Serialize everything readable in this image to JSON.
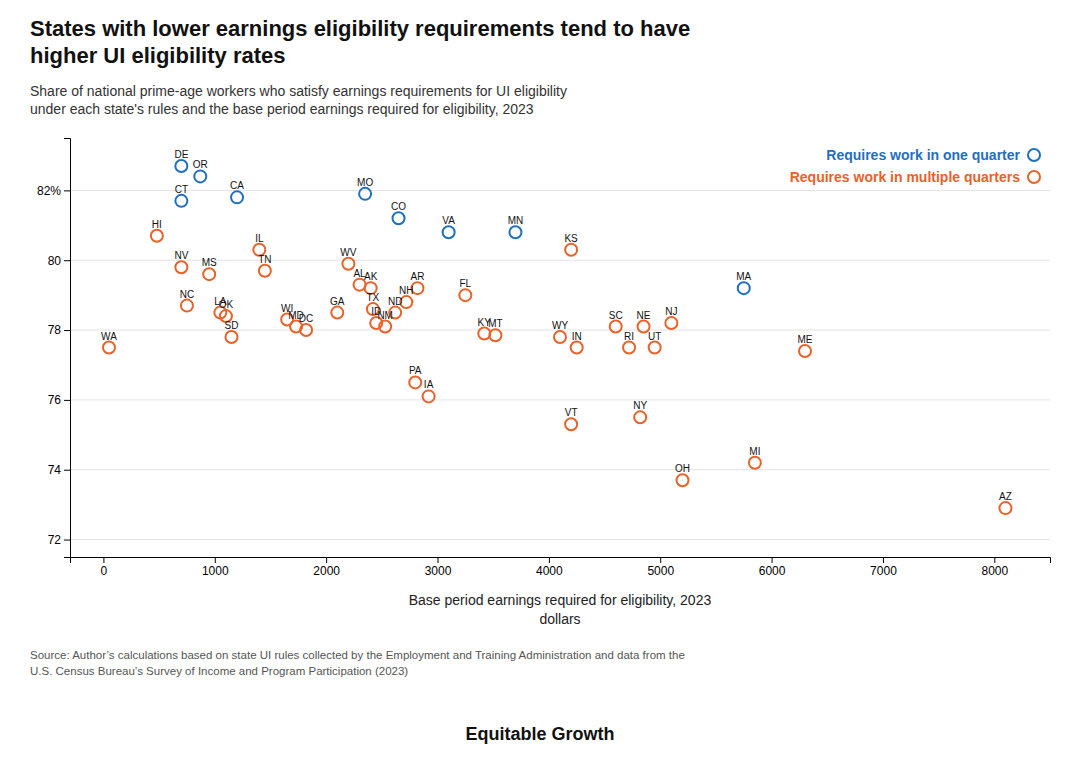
{
  "chart_data": {
    "type": "scatter",
    "title": "States with lower earnings eligibility requirements tend to have\nhigher UI eligibility rates",
    "subtitle": "Share of national prime-age workers who satisfy earnings requirements for UI eligibility\nunder each state's rules and the base period earnings required for eligibility, 2023",
    "xlabel": "Base period earnings required for eligibility, 2023\ndollars",
    "source": "Source: Author’s calculations based on state UI rules collected by the Employment and Training Administration and data from the\nU.S. Census Bureau’s Survey of Income and Program Participation (2023)",
    "annotations": [
      "Equitable Growth"
    ],
    "xlim": [
      -300,
      8500
    ],
    "ylim": [
      71.5,
      83.5
    ],
    "xticks": [
      0,
      1000,
      2000,
      3000,
      4000,
      5000,
      6000,
      7000,
      8000
    ],
    "yticks": [
      72,
      74,
      76,
      78,
      80,
      {
        "value": 82,
        "label": "82%"
      }
    ],
    "grid": "y",
    "legend": "upper right",
    "series": [
      {
        "name": "Requires work in one quarter",
        "color": "#1F6FBF",
        "labels": [
          "DE",
          "OR",
          "CT",
          "CA",
          "MO",
          "CO",
          "VA",
          "MN",
          "MA"
        ],
        "x": [
          700,
          870,
          700,
          1200,
          2350,
          2650,
          3100,
          3700,
          5750
        ],
        "values": [
          82.7,
          82.4,
          81.7,
          81.8,
          81.9,
          81.2,
          80.8,
          80.8,
          79.2
        ]
      },
      {
        "name": "Requires work in multiple quarters",
        "color": "#E8622A",
        "labels": [
          "WA",
          "HI",
          "NV",
          "NC",
          "MS",
          "LA",
          "OK",
          "SD",
          "IL",
          "TN",
          "WI",
          "MD",
          "DC",
          "GA",
          "WV",
          "AL",
          "AK",
          "TX",
          "ID",
          "NM",
          "ND",
          "NH",
          "AR",
          "PA",
          "IA",
          "FL",
          "KY",
          "MT",
          "KS",
          "WY",
          "VT",
          "IN",
          "SC",
          "NY",
          "RI",
          "NE",
          "UT",
          "NJ",
          "OH",
          "MI",
          "ME",
          "AZ"
        ],
        "x": [
          50,
          480,
          700,
          750,
          950,
          1050,
          1100,
          1150,
          1400,
          1450,
          1650,
          1730,
          1820,
          2100,
          2200,
          2300,
          2400,
          2420,
          2450,
          2530,
          2620,
          2720,
          2820,
          2800,
          2920,
          3250,
          3420,
          3520,
          4200,
          4100,
          4200,
          4250,
          4600,
          4820,
          4720,
          4850,
          4950,
          5100,
          5200,
          5850,
          6300,
          8100
        ],
        "values": [
          77.5,
          80.7,
          79.8,
          78.7,
          79.6,
          78.5,
          78.4,
          77.8,
          80.3,
          79.7,
          78.3,
          78.1,
          78.0,
          78.5,
          79.9,
          79.3,
          79.2,
          78.6,
          78.2,
          78.1,
          78.5,
          78.8,
          79.2,
          76.5,
          76.1,
          79.0,
          77.9,
          77.85,
          80.3,
          77.8,
          75.3,
          77.5,
          78.1,
          75.5,
          77.5,
          78.1,
          77.5,
          78.2,
          73.7,
          74.2,
          77.4,
          72.9
        ]
      }
    ]
  }
}
